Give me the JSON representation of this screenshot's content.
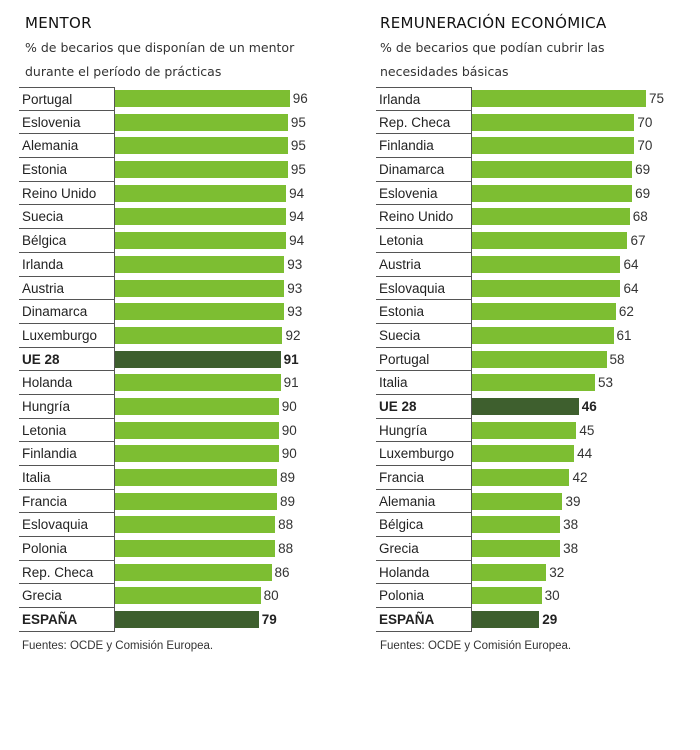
{
  "chart_data": [
    {
      "type": "bar",
      "orientation": "horizontal",
      "title": "MENTOR",
      "subtitle_lines": [
        "% de becarios que disponían de un mentor",
        "durante el período de prácticas"
      ],
      "categories": [
        "Portugal",
        "Eslovenia",
        "Alemania",
        "Estonia",
        "Reino Unido",
        "Suecia",
        "Bélgica",
        "Irlanda",
        "Austria",
        "Dinamarca",
        "Luxemburgo",
        "UE 28",
        "Holanda",
        "Hungría",
        "Letonia",
        "Finlandia",
        "Italia",
        "Francia",
        "Eslovaquia",
        "Polonia",
        "Rep. Checa",
        "Grecia",
        "ESPAÑA"
      ],
      "values": [
        96,
        95,
        95,
        95,
        94,
        94,
        94,
        93,
        93,
        93,
        92,
        91,
        91,
        90,
        90,
        90,
        89,
        89,
        88,
        88,
        86,
        80,
        79
      ],
      "highlight": [
        "UE 28",
        "ESPAÑA"
      ],
      "xlim": [
        0,
        100
      ],
      "source": "Fuentes: OCDE y Comisión Europea."
    },
    {
      "type": "bar",
      "orientation": "horizontal",
      "title": "REMUNERACIÓN ECONÓMICA",
      "subtitle_lines": [
        "% de becarios que podían cubrir las",
        "necesidades básicas"
      ],
      "categories": [
        "Irlanda",
        "Rep. Checa",
        "Finlandia",
        "Dinamarca",
        "Eslovenia",
        "Reino Unido",
        "Letonia",
        "Austria",
        "Eslovaquia",
        "Estonia",
        "Suecia",
        "Portugal",
        "Italia",
        "UE 28",
        "Hungría",
        "Luxemburgo",
        "Francia",
        "Alemania",
        "Bélgica",
        "Grecia",
        "Holanda",
        "Polonia",
        "ESPAÑA"
      ],
      "values": [
        75,
        70,
        70,
        69,
        69,
        68,
        67,
        64,
        64,
        62,
        61,
        58,
        53,
        46,
        45,
        44,
        42,
        39,
        38,
        38,
        32,
        30,
        29
      ],
      "highlight": [
        "UE 28",
        "ESPAÑA"
      ],
      "xlim": [
        0,
        75
      ],
      "source": "Fuentes: OCDE y Comisión Europea."
    }
  ],
  "colors": {
    "bar": "#7dbe32",
    "highlight": "#3e5f2e"
  }
}
